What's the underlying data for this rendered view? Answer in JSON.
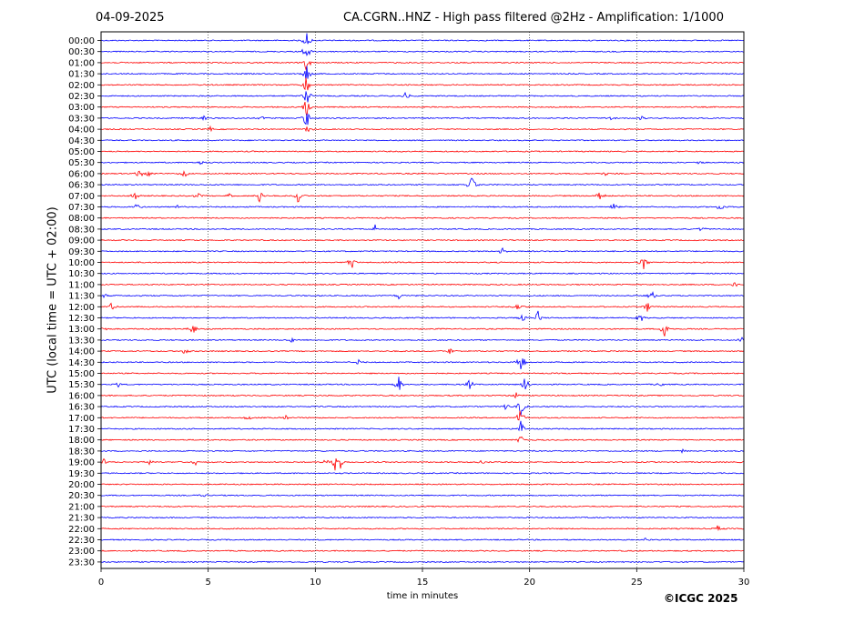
{
  "header": {
    "date": "04-09-2025",
    "title": "CA.CGRN..HNZ - High pass filtered @2Hz - Amplification: 1/1000"
  },
  "footer": {
    "copyright": "©ICGC 2025"
  },
  "colors": {
    "red_trace": "#ff0000",
    "blue_trace": "#0000ff",
    "grid": "#000000"
  },
  "chart_data": {
    "type": "line",
    "title": "CA.CGRN..HNZ - High pass filtered @2Hz - Amplification: 1/1000",
    "xlabel": "time in minutes",
    "ylabel": "UTC (local time = UTC + 02:00)",
    "xlim": [
      0,
      30
    ],
    "x_ticks": [
      "0",
      "5",
      "10",
      "15",
      "20",
      "25",
      "30"
    ],
    "grid": "vertical dotted at 5-minute intervals",
    "rows": [
      "00:00",
      "00:30",
      "01:00",
      "01:30",
      "02:00",
      "02:30",
      "03:00",
      "03:30",
      "04:00",
      "04:30",
      "05:00",
      "05:30",
      "06:00",
      "06:30",
      "07:00",
      "07:30",
      "08:00",
      "08:30",
      "09:00",
      "09:30",
      "10:00",
      "10:30",
      "11:00",
      "11:30",
      "12:00",
      "12:30",
      "13:00",
      "13:30",
      "14:00",
      "14:30",
      "15:00",
      "15:30",
      "16:00",
      "16:30",
      "17:00",
      "17:30",
      "18:00",
      "18:30",
      "19:00",
      "19:30",
      "20:00",
      "20:30",
      "21:00",
      "21:30",
      "22:00",
      "22:30",
      "23:00",
      "23:30"
    ],
    "row_colors": [
      "blue",
      "blue",
      "red",
      "blue",
      "red",
      "blue",
      "red",
      "blue",
      "red",
      "blue",
      "red",
      "blue",
      "red",
      "blue",
      "red",
      "blue",
      "red",
      "blue",
      "red",
      "blue",
      "red",
      "blue",
      "red",
      "blue",
      "red",
      "blue",
      "red",
      "blue",
      "red",
      "blue",
      "red",
      "blue",
      "red",
      "blue",
      "red",
      "blue",
      "red",
      "blue",
      "red",
      "blue",
      "red",
      "blue",
      "red",
      "blue",
      "red",
      "blue",
      "red",
      "blue"
    ],
    "events": [
      {
        "row": 0,
        "minute": 9.6,
        "amp": 10
      },
      {
        "row": 1,
        "minute": 9.6,
        "amp": 12
      },
      {
        "row": 2,
        "minute": 9.6,
        "amp": 12
      },
      {
        "row": 3,
        "minute": 9.6,
        "amp": 12
      },
      {
        "row": 4,
        "minute": 9.6,
        "amp": 12
      },
      {
        "row": 5,
        "minute": 9.6,
        "amp": 12
      },
      {
        "row": 5,
        "minute": 14.2,
        "amp": 5
      },
      {
        "row": 6,
        "minute": 9.6,
        "amp": 12
      },
      {
        "row": 7,
        "minute": 9.6,
        "amp": 12
      },
      {
        "row": 7,
        "minute": 4.8,
        "amp": 3
      },
      {
        "row": 7,
        "minute": 7.5,
        "amp": 2
      },
      {
        "row": 7,
        "minute": 23.8,
        "amp": 2
      },
      {
        "row": 7,
        "minute": 25.2,
        "amp": 3
      },
      {
        "row": 8,
        "minute": 5.1,
        "amp": 4
      },
      {
        "row": 8,
        "minute": 9.6,
        "amp": 6
      },
      {
        "row": 11,
        "minute": 4.6,
        "amp": 4
      },
      {
        "row": 11,
        "minute": 27.9,
        "amp": 4
      },
      {
        "row": 12,
        "minute": 1.8,
        "amp": 7
      },
      {
        "row": 12,
        "minute": 2.2,
        "amp": 4
      },
      {
        "row": 12,
        "minute": 3.9,
        "amp": 5
      },
      {
        "row": 12,
        "minute": 23.5,
        "amp": 3
      },
      {
        "row": 13,
        "minute": 17.3,
        "amp": 12
      },
      {
        "row": 14,
        "minute": 1.6,
        "amp": 5
      },
      {
        "row": 14,
        "minute": 4.5,
        "amp": 4
      },
      {
        "row": 14,
        "minute": 6.0,
        "amp": 4
      },
      {
        "row": 14,
        "minute": 7.4,
        "amp": 9
      },
      {
        "row": 14,
        "minute": 9.2,
        "amp": 10
      },
      {
        "row": 14,
        "minute": 23.3,
        "amp": 10
      },
      {
        "row": 15,
        "minute": 1.7,
        "amp": 6
      },
      {
        "row": 15,
        "minute": 3.6,
        "amp": 4
      },
      {
        "row": 15,
        "minute": 23.9,
        "amp": 5
      },
      {
        "row": 15,
        "minute": 28.9,
        "amp": 5
      },
      {
        "row": 17,
        "minute": 12.8,
        "amp": 5
      },
      {
        "row": 17,
        "minute": 28.0,
        "amp": 4
      },
      {
        "row": 19,
        "minute": 18.7,
        "amp": 5
      },
      {
        "row": 20,
        "minute": 11.7,
        "amp": 8
      },
      {
        "row": 20,
        "minute": 25.3,
        "amp": 12
      },
      {
        "row": 22,
        "minute": 29.6,
        "amp": 4
      },
      {
        "row": 23,
        "minute": 0.2,
        "amp": 3
      },
      {
        "row": 23,
        "minute": 13.9,
        "amp": 4
      },
      {
        "row": 23,
        "minute": 25.7,
        "amp": 6
      },
      {
        "row": 24,
        "minute": 0.5,
        "amp": 5
      },
      {
        "row": 24,
        "minute": 19.5,
        "amp": 7
      },
      {
        "row": 24,
        "minute": 25.5,
        "amp": 6
      },
      {
        "row": 25,
        "minute": 19.6,
        "amp": 8
      },
      {
        "row": 25,
        "minute": 20.4,
        "amp": 8
      },
      {
        "row": 25,
        "minute": 25.2,
        "amp": 6
      },
      {
        "row": 26,
        "minute": 0.2,
        "amp": 4
      },
      {
        "row": 26,
        "minute": 4.3,
        "amp": 7
      },
      {
        "row": 26,
        "minute": 26.3,
        "amp": 10
      },
      {
        "row": 27,
        "minute": 8.9,
        "amp": 3
      },
      {
        "row": 27,
        "minute": 29.9,
        "amp": 3
      },
      {
        "row": 28,
        "minute": 3.9,
        "amp": 5
      },
      {
        "row": 28,
        "minute": 16.3,
        "amp": 5
      },
      {
        "row": 29,
        "minute": 12.0,
        "amp": 3
      },
      {
        "row": 29,
        "minute": 19.6,
        "amp": 14
      },
      {
        "row": 31,
        "minute": 0.8,
        "amp": 4
      },
      {
        "row": 31,
        "minute": 13.9,
        "amp": 10
      },
      {
        "row": 31,
        "minute": 17.2,
        "amp": 6
      },
      {
        "row": 31,
        "minute": 19.8,
        "amp": 10
      },
      {
        "row": 31,
        "minute": 26.1,
        "amp": 3
      },
      {
        "row": 32,
        "minute": 19.4,
        "amp": 5
      },
      {
        "row": 33,
        "minute": 18.9,
        "amp": 5
      },
      {
        "row": 33,
        "minute": 19.6,
        "amp": 12
      },
      {
        "row": 34,
        "minute": 6.9,
        "amp": 4
      },
      {
        "row": 34,
        "minute": 8.6,
        "amp": 4
      },
      {
        "row": 34,
        "minute": 19.6,
        "amp": 12
      },
      {
        "row": 35,
        "minute": 19.6,
        "amp": 10
      },
      {
        "row": 36,
        "minute": 19.6,
        "amp": 6
      },
      {
        "row": 37,
        "minute": 27.2,
        "amp": 3
      },
      {
        "row": 38,
        "minute": 0.1,
        "amp": 5
      },
      {
        "row": 38,
        "minute": 2.3,
        "amp": 4
      },
      {
        "row": 38,
        "minute": 4.4,
        "amp": 5
      },
      {
        "row": 38,
        "minute": 10.5,
        "amp": 4
      },
      {
        "row": 38,
        "minute": 10.9,
        "amp": 12
      },
      {
        "row": 38,
        "minute": 11.1,
        "amp": 12
      },
      {
        "row": 38,
        "minute": 17.8,
        "amp": 5
      },
      {
        "row": 41,
        "minute": 4.8,
        "amp": 3
      },
      {
        "row": 44,
        "minute": 28.8,
        "amp": 4
      },
      {
        "row": 45,
        "minute": 25.4,
        "amp": 3
      }
    ]
  }
}
